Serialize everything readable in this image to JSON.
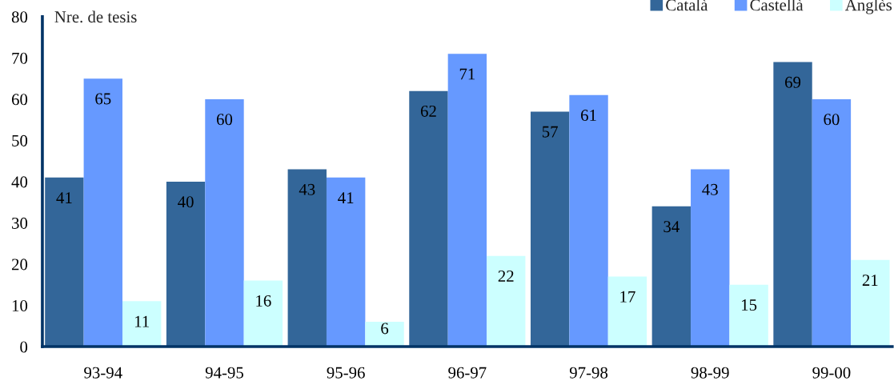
{
  "chart_data": {
    "type": "bar",
    "ylabel": "Nre. de tesis",
    "categories": [
      "93-94",
      "94-95",
      "95-96",
      "96-97",
      "97-98",
      "98-99",
      "99-00"
    ],
    "series": [
      {
        "name": "Català",
        "color": "#336699",
        "values": [
          41,
          40,
          43,
          62,
          57,
          34,
          69
        ]
      },
      {
        "name": "Castellà",
        "color": "#6699ff",
        "values": [
          65,
          60,
          41,
          71,
          61,
          43,
          60
        ]
      },
      {
        "name": "Anglès",
        "color": "#ccffff",
        "values": [
          11,
          16,
          6,
          22,
          17,
          15,
          21
        ]
      }
    ],
    "ylim": [
      0,
      80
    ],
    "yticks": [
      0,
      10,
      20,
      30,
      40,
      50,
      60,
      70,
      80
    ],
    "grid": false,
    "legend": "top right",
    "data_labels": true
  }
}
